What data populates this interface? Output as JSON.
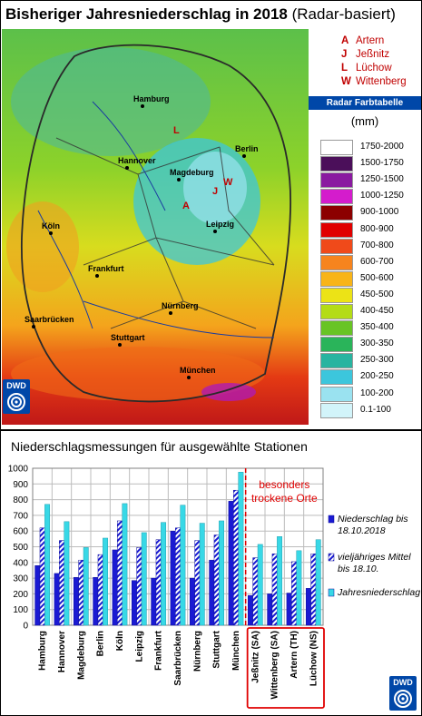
{
  "title": {
    "main": "Bisheriger Jahresniederschlag in 2018",
    "sub": "(Radar-basiert)"
  },
  "station_legend": [
    {
      "key": "A",
      "name": "Artern"
    },
    {
      "key": "J",
      "name": "Jeßnitz"
    },
    {
      "key": "L",
      "name": "Lüchow"
    },
    {
      "key": "W",
      "name": "Wittenberg"
    }
  ],
  "map": {
    "cities": [
      "Hamburg",
      "Hannover",
      "Magdeburg",
      "Berlin",
      "Köln",
      "Leipzig",
      "Frankfurt",
      "Nürnberg",
      "Saarbrücken",
      "Stuttgart",
      "München"
    ],
    "station_markers": [
      "L",
      "W",
      "J",
      "A"
    ]
  },
  "color_table": {
    "header": "Radar Farbtabelle",
    "unit": "(mm)",
    "bins": [
      {
        "label": "1750-2000",
        "color": "#ffffff"
      },
      {
        "label": "1500-1750",
        "color": "#4b0f5a"
      },
      {
        "label": "1250-1500",
        "color": "#8a1aa0"
      },
      {
        "label": "1000-1250",
        "color": "#d41ccc"
      },
      {
        "label": "900-1000",
        "color": "#8c0000"
      },
      {
        "label": "800-900",
        "color": "#e00000"
      },
      {
        "label": "700-800",
        "color": "#f04a1a"
      },
      {
        "label": "600-700",
        "color": "#f6841e"
      },
      {
        "label": "500-600",
        "color": "#f8b418"
      },
      {
        "label": "450-500",
        "color": "#ece316"
      },
      {
        "label": "400-450",
        "color": "#b4dc16"
      },
      {
        "label": "350-400",
        "color": "#68c424"
      },
      {
        "label": "300-350",
        "color": "#2ab45a"
      },
      {
        "label": "250-300",
        "color": "#28b4a0"
      },
      {
        "label": "200-250",
        "color": "#3cc6dc"
      },
      {
        "label": "100-200",
        "color": "#9ae2f0"
      },
      {
        "label": "0.1-100",
        "color": "#d2f4fa"
      }
    ]
  },
  "logo_text": "DWD",
  "chart_data": {
    "type": "bar",
    "title": "Niederschlagsmessungen für ausgewählte Stationen",
    "categories": [
      "Hamburg",
      "Hannover",
      "Magdeburg",
      "Berlin",
      "Köln",
      "Leipzig",
      "Frankfurt",
      "Saarbrücken",
      "Nürnberg",
      "Stuttgart",
      "München",
      "Jeßnitz (SA)",
      "Wittenberg (SA)",
      "Artern (TH)",
      "Lüchow (NS)"
    ],
    "series": [
      {
        "name": "Niederschlag bis 18.10.2018",
        "values": [
          380,
          330,
          305,
          305,
          480,
          285,
          300,
          600,
          300,
          415,
          790,
          190,
          200,
          205,
          235
        ],
        "color": "#1a1ad2",
        "pattern": "solid"
      },
      {
        "name": "vieljähriges Mittel bis 18.10.",
        "values": [
          620,
          540,
          415,
          450,
          665,
          495,
          545,
          620,
          540,
          575,
          860,
          430,
          455,
          405,
          455
        ],
        "color": "#1a1ad2",
        "pattern": "hatched"
      },
      {
        "name": "Jahresniederschlag",
        "values": [
          770,
          660,
          495,
          555,
          775,
          590,
          655,
          765,
          650,
          665,
          975,
          515,
          565,
          475,
          545
        ],
        "color": "#38d8e6",
        "pattern": "solid"
      }
    ],
    "ylim": [
      0,
      1000
    ],
    "yticks": [
      0,
      100,
      200,
      300,
      400,
      500,
      600,
      700,
      800,
      900,
      1000
    ],
    "grid": true,
    "annotation": "besonders trockene Orte",
    "highlight_categories": [
      "Jeßnitz (SA)",
      "Wittenberg (SA)",
      "Artern (TH)",
      "Lüchow (NS)"
    ],
    "legend_placement": "right"
  }
}
